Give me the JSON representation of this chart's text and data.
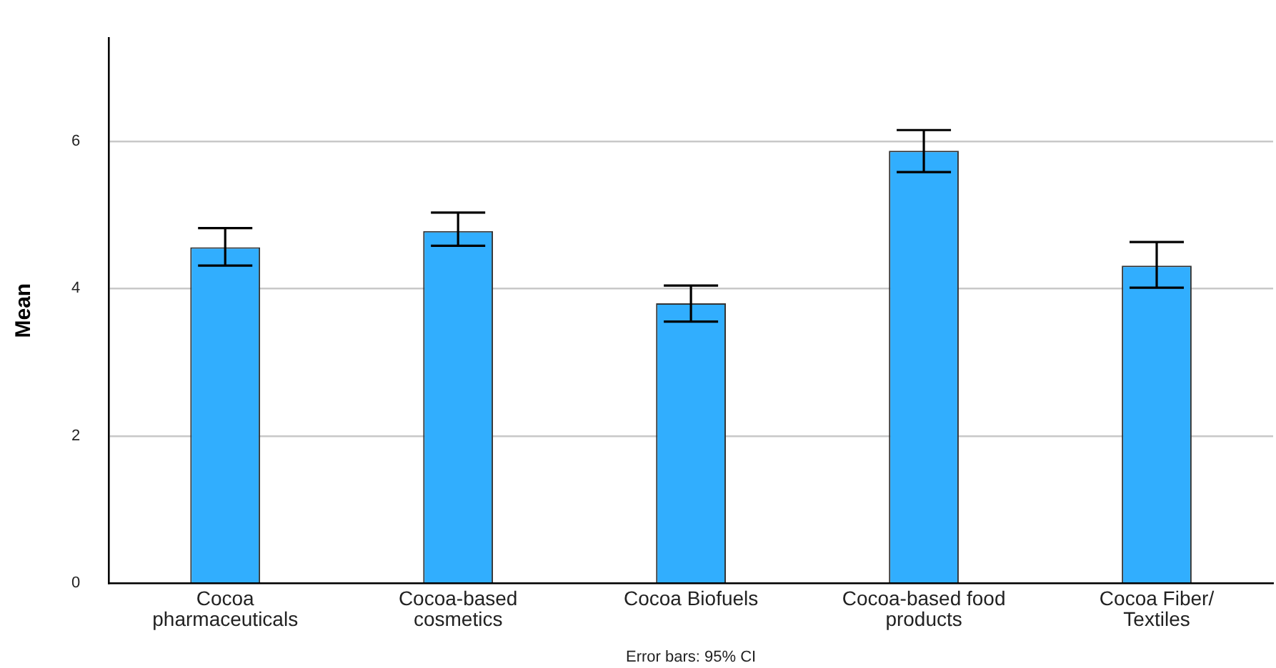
{
  "chart_data": {
    "type": "bar",
    "ylabel": "Mean",
    "categories": [
      "Cocoa\npharmaceuticals",
      "Cocoa-based\ncosmetics",
      "Cocoa Biofuels",
      "Cocoa-based food\nproducts",
      "Cocoa Fiber/\nTextiles"
    ],
    "values": [
      4.56,
      4.78,
      3.8,
      5.87,
      4.31
    ],
    "errors": [
      [
        4.31,
        4.82
      ],
      [
        4.58,
        5.03
      ],
      [
        3.55,
        4.04
      ],
      [
        5.58,
        6.15
      ],
      [
        4.01,
        4.63
      ]
    ],
    "color": "#31aefe",
    "ylim": [
      0,
      7.4
    ],
    "yticks": [
      0,
      2,
      4,
      6
    ],
    "grid": "y",
    "legend": false,
    "annotations": [
      "Error bars: 95% CI"
    ]
  }
}
